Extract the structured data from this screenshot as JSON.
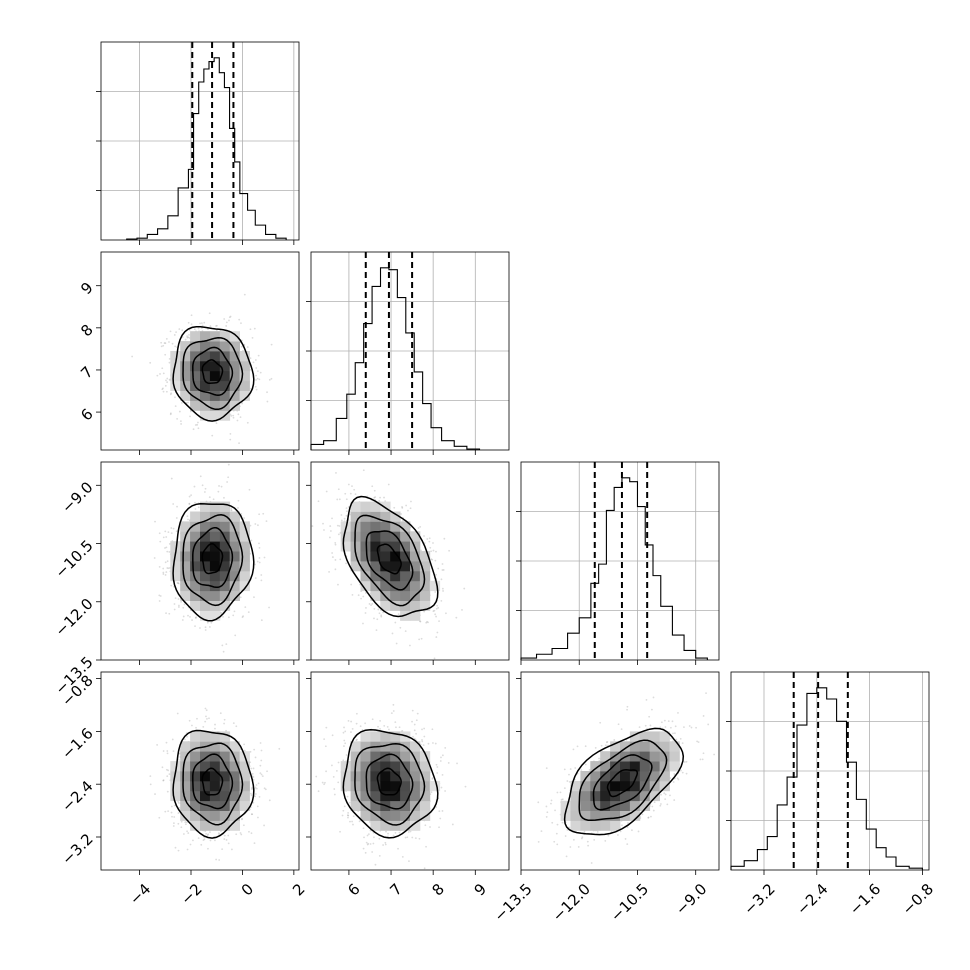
{
  "chart_data": {
    "type": "corner",
    "parameters": [
      {
        "ticks": [
          -4,
          -2,
          0,
          2
        ],
        "tick_labels": [
          "−4",
          "−2",
          "0",
          "2"
        ],
        "range": [
          -5.5,
          2.2
        ],
        "mean": -1.18,
        "sd": 0.77,
        "q16": -1.95,
        "q50": -1.18,
        "q84": -0.35
      },
      {
        "ticks": [
          6,
          7,
          8,
          9
        ],
        "tick_labels": [
          "6",
          "7",
          "8",
          "9"
        ],
        "range": [
          5.1,
          9.8
        ],
        "mean": 6.95,
        "sd": 0.55,
        "q16": 6.4,
        "q50": 6.95,
        "q84": 7.5
      },
      {
        "ticks": [
          -13.5,
          -12.0,
          -10.5,
          -9.0
        ],
        "tick_labels": [
          "−13.5",
          "−12.0",
          "−10.5",
          "−9.0"
        ],
        "range": [
          -13.5,
          -8.4
        ],
        "mean": -10.9,
        "sd": 0.75,
        "q16": -11.6,
        "q50": -10.9,
        "q84": -10.25
      },
      {
        "ticks": [
          -3.2,
          -2.4,
          -1.6,
          -0.8
        ],
        "tick_labels": [
          "−3.2",
          "−2.4",
          "−1.6",
          "−0.8"
        ],
        "range": [
          -3.7,
          -0.7
        ],
        "mean": -2.37,
        "sd": 0.4,
        "q16": -2.75,
        "q50": -2.38,
        "q84": -1.93
      }
    ],
    "histograms": [
      {
        "param": 0,
        "edges": [
          -4.5,
          -4.1,
          -3.7,
          -3.3,
          -2.9,
          -2.5,
          -2.1,
          -1.9,
          -1.7,
          -1.5,
          -1.3,
          -1.1,
          -0.9,
          -0.7,
          -0.5,
          -0.3,
          -0.1,
          0.2,
          0.5,
          0.9,
          1.3,
          1.7
        ],
        "counts": [
          0.005,
          0.01,
          0.03,
          0.06,
          0.13,
          0.28,
          0.38,
          0.68,
          0.85,
          0.92,
          0.96,
          0.98,
          0.9,
          0.82,
          0.6,
          0.42,
          0.25,
          0.16,
          0.08,
          0.03,
          0.01
        ]
      },
      {
        "param": 1,
        "edges": [
          5.1,
          5.4,
          5.7,
          5.95,
          6.15,
          6.35,
          6.55,
          6.75,
          6.95,
          7.15,
          7.35,
          7.55,
          7.75,
          7.95,
          8.2,
          8.5,
          8.8,
          9.1
        ],
        "counts": [
          0.03,
          0.05,
          0.17,
          0.3,
          0.47,
          0.68,
          0.88,
          0.98,
          0.97,
          0.82,
          0.63,
          0.42,
          0.25,
          0.12,
          0.05,
          0.02,
          0.005
        ]
      },
      {
        "param": 2,
        "edges": [
          -13.5,
          -13.1,
          -12.7,
          -12.3,
          -12.0,
          -11.7,
          -11.5,
          -11.3,
          -11.1,
          -10.9,
          -10.7,
          -10.5,
          -10.3,
          -10.1,
          -9.9,
          -9.6,
          -9.3,
          -9.0,
          -8.7
        ],
        "counts": [
          0.01,
          0.03,
          0.06,
          0.14,
          0.22,
          0.4,
          0.5,
          0.78,
          0.9,
          0.95,
          0.93,
          0.8,
          0.6,
          0.44,
          0.28,
          0.13,
          0.05,
          0.01
        ]
      },
      {
        "param": 3,
        "edges": [
          -3.7,
          -3.5,
          -3.3,
          -3.15,
          -3.0,
          -2.85,
          -2.7,
          -2.55,
          -2.4,
          -2.25,
          -2.1,
          -1.95,
          -1.8,
          -1.65,
          -1.5,
          -1.35,
          -1.2,
          -1.0,
          -0.8
        ],
        "counts": [
          0.02,
          0.05,
          0.11,
          0.18,
          0.35,
          0.5,
          0.78,
          0.95,
          0.98,
          0.92,
          0.8,
          0.58,
          0.38,
          0.22,
          0.12,
          0.07,
          0.02,
          0.01
        ]
      }
    ],
    "pairs": [
      {
        "x": 0,
        "y": 1,
        "corr": -0.05
      },
      {
        "x": 0,
        "y": 2,
        "corr": 0.05
      },
      {
        "x": 1,
        "y": 2,
        "corr": -0.45
      },
      {
        "x": 0,
        "y": 3,
        "corr": -0.05
      },
      {
        "x": 1,
        "y": 3,
        "corr": -0.1
      },
      {
        "x": 2,
        "y": 3,
        "corr": 0.55
      }
    ],
    "contour_levels_sigma": [
      0.5,
      1.0,
      1.5,
      2.0
    ],
    "grid": true,
    "colors": {
      "scatter": "#9a9a9a",
      "lines": "#000000",
      "grid": "#b0b0b0"
    }
  }
}
